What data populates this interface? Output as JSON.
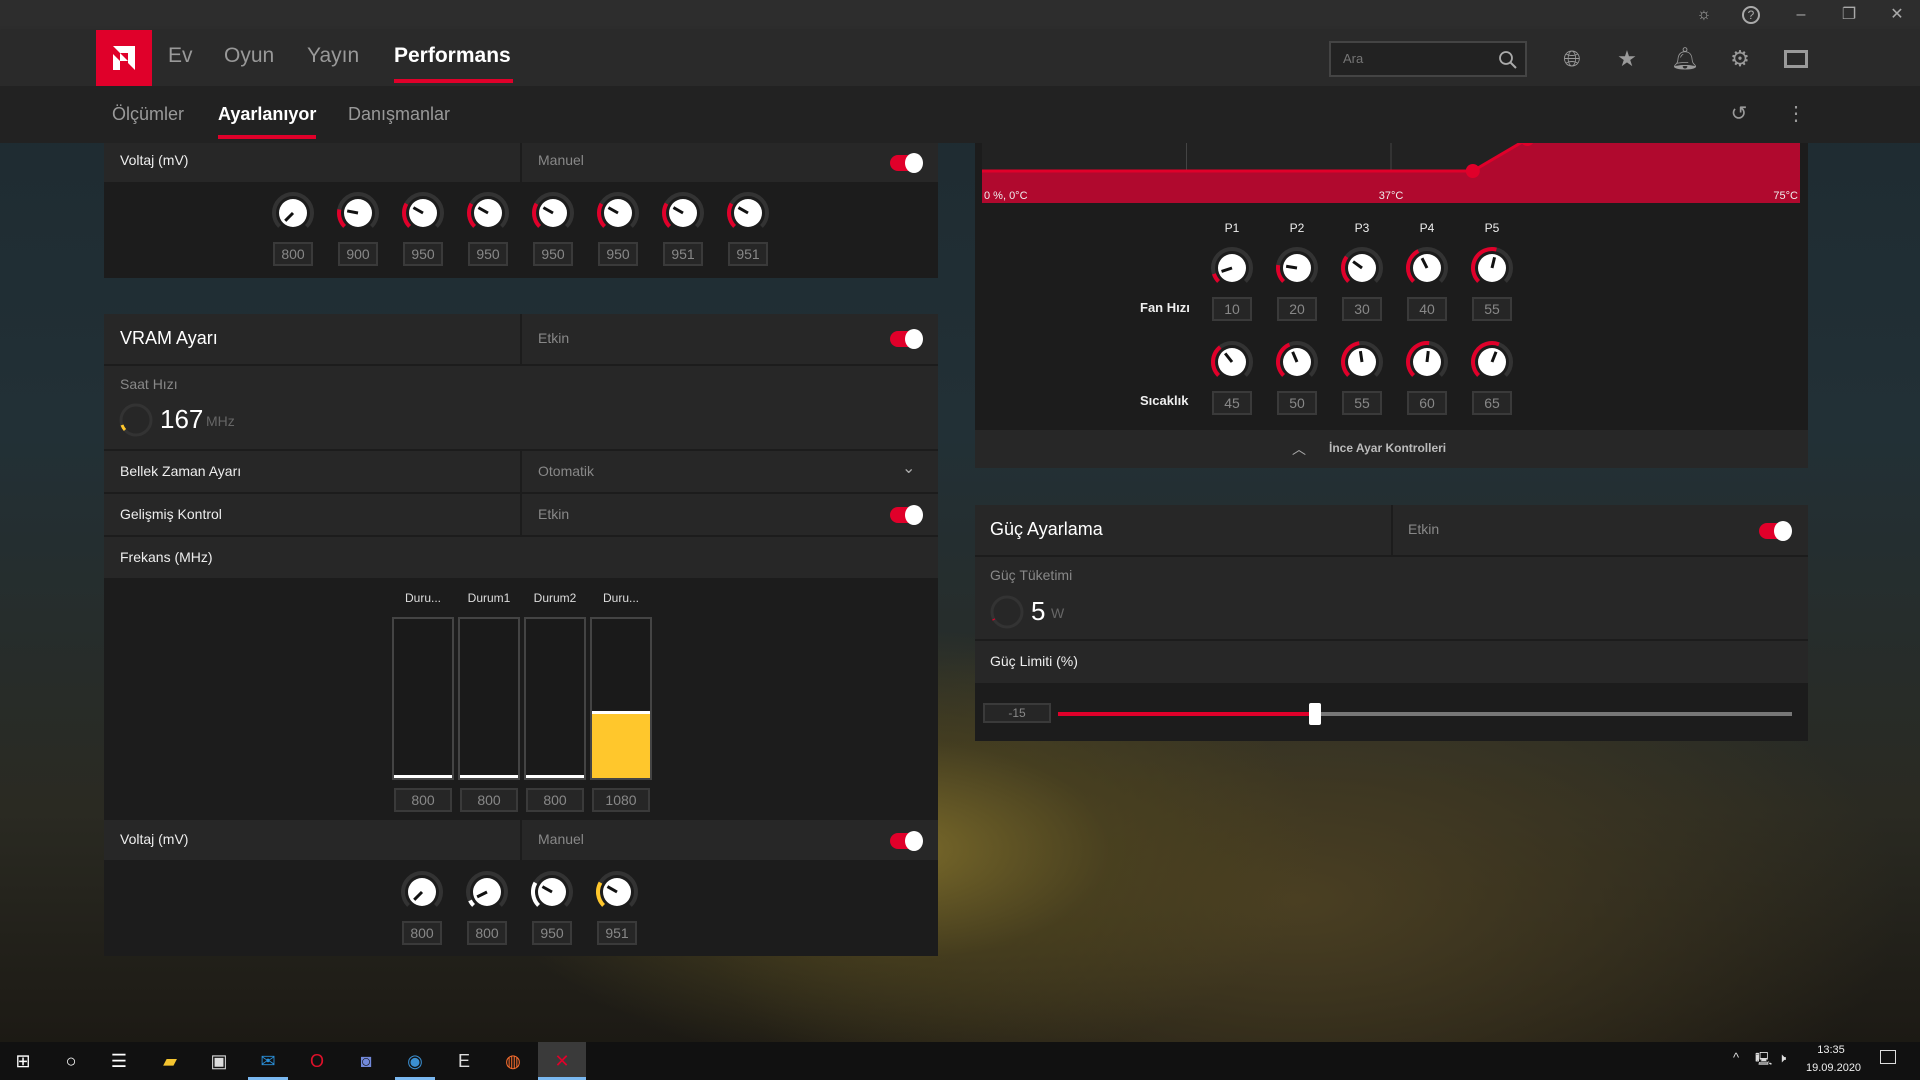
{
  "titlebar": {
    "icons": [
      "bug-icon",
      "help-icon",
      "minimize-icon",
      "restore-icon",
      "close-icon"
    ]
  },
  "nav": {
    "items": [
      {
        "label": "Ev"
      },
      {
        "label": "Oyun"
      },
      {
        "label": "Yayın"
      },
      {
        "label": "Performans",
        "active": true
      }
    ],
    "search_placeholder": "Ara",
    "icons": [
      "globe-icon",
      "star-icon",
      "bell-icon",
      "gear-icon",
      "sidebar-exit-icon"
    ]
  },
  "subnav": {
    "items": [
      {
        "label": "Ölçümler"
      },
      {
        "label": "Ayarlanıyor",
        "active": true
      },
      {
        "label": "Danışmanlar"
      }
    ]
  },
  "colors": {
    "accent": "#e0002a",
    "yellow": "#ffc72c"
  },
  "gpu_voltage": {
    "label": "Voltaj (mV)",
    "mode": "Manuel",
    "enabled": true,
    "values": [
      800,
      900,
      950,
      950,
      950,
      950,
      951,
      951
    ]
  },
  "vram": {
    "title": "VRAM Ayarı",
    "status": "Etkin",
    "enabled": true,
    "clock": {
      "label": "Saat Hızı",
      "value": "167",
      "unit": "MHz"
    },
    "timing": {
      "label": "Bellek Zaman Ayarı",
      "value": "Otomatik"
    },
    "advanced": {
      "label": "Gelişmiş Kontrol",
      "value": "Etkin",
      "enabled": true
    },
    "frequency": {
      "label": "Frekans (MHz)",
      "states": [
        {
          "label": "Duru...",
          "value": 800,
          "fill": 0.02
        },
        {
          "label": "Durum1",
          "value": 800,
          "fill": 0.02
        },
        {
          "label": "Durum2",
          "value": 800,
          "fill": 0.02
        },
        {
          "label": "Duru...",
          "value": 1080,
          "fill": 0.42,
          "active": true
        }
      ]
    },
    "voltage": {
      "label": "Voltaj (mV)",
      "mode": "Manuel",
      "enabled": true,
      "values": [
        800,
        800,
        950,
        951
      ],
      "active_index": 3
    }
  },
  "fan": {
    "chart_data": {
      "type": "area",
      "x_unit": "°C",
      "xlim": [
        0,
        75
      ],
      "tick_labels": [
        "0 %, 0°C",
        "37°C",
        "75°C"
      ],
      "points": [
        {
          "temp": 45,
          "fan": 10
        },
        {
          "temp": 50,
          "fan": 20
        },
        {
          "temp": 55,
          "fan": 30
        },
        {
          "temp": 60,
          "fan": 40
        },
        {
          "temp": 65,
          "fan": 55
        }
      ]
    },
    "points_labels": [
      "P1",
      "P2",
      "P3",
      "P4",
      "P5"
    ],
    "fan_label": "Fan Hızı",
    "fan_values": [
      10,
      20,
      30,
      40,
      55
    ],
    "temp_label": "Sıcaklık",
    "temp_values": [
      45,
      50,
      55,
      60,
      65
    ],
    "fine_tune_label": "İnce Ayar Kontrolleri"
  },
  "power": {
    "title": "Güç Ayarlama",
    "status": "Etkin",
    "enabled": true,
    "consumption": {
      "label": "Güç Tüketimi",
      "value": "5",
      "unit": "W"
    },
    "limit": {
      "label": "Güç Limiti (%)",
      "value": "-15",
      "min": -50,
      "max": 50
    }
  },
  "taskbar": {
    "icons": [
      "windows-start-icon",
      "search-circle-icon",
      "task-view-icon",
      "file-explorer-icon",
      "store-icon",
      "mail-icon",
      "opera-icon",
      "discord-icon",
      "steam-icon",
      "epic-games-icon",
      "origin-icon",
      "amd-radeon-icon"
    ],
    "time": "13:35",
    "date": "19.09.2020"
  }
}
